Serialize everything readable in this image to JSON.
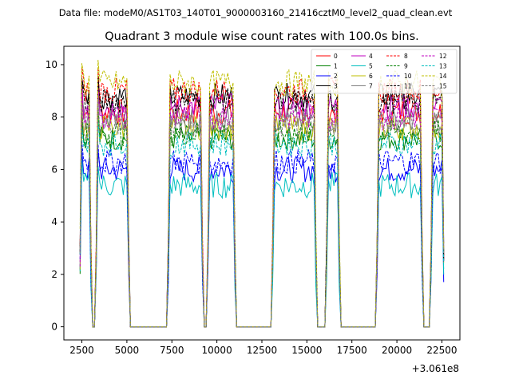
{
  "chart_data": {
    "type": "line",
    "suptitle": "Data file: modeM0/AS1T03_140T01_9000003160_21416cztM0_level2_quad_clean.evt",
    "title": "Quadrant 3 module wise count rates with 100.0s bins.",
    "xlabel": "",
    "ylabel": "",
    "x_offset_label": "+3.061e8",
    "xlim": [
      1500,
      23500
    ],
    "ylim": [
      -0.5,
      10.7
    ],
    "x_ticks": [
      2500,
      5000,
      7500,
      10000,
      12500,
      15000,
      17500,
      20000,
      22500
    ],
    "x_tick_labels": [
      "2500",
      "5000",
      "7500",
      "10000",
      "12500",
      "15000",
      "17500",
      "20000",
      "22500"
    ],
    "y_ticks": [
      0,
      2,
      4,
      6,
      8,
      10
    ],
    "y_tick_labels": [
      "0",
      "2",
      "4",
      "6",
      "8",
      "10"
    ],
    "segments": [
      {
        "start": 2400,
        "end": 3000
      },
      {
        "start": 3300,
        "end": 5100
      },
      {
        "start": 7300,
        "end": 9200
      },
      {
        "start": 9500,
        "end": 11000
      },
      {
        "start": 13100,
        "end": 15500
      },
      {
        "start": 16100,
        "end": 16800
      },
      {
        "start": 18900,
        "end": 21400
      },
      {
        "start": 21900,
        "end": 22600
      }
    ],
    "legend": {
      "location": "upper right",
      "ncol": 4
    },
    "series": [
      {
        "name": "0",
        "color": "#ff0000",
        "dash": "solid",
        "level": 8.2
      },
      {
        "name": "1",
        "color": "#008000",
        "dash": "solid",
        "level": 7.2
      },
      {
        "name": "2",
        "color": "#0000ff",
        "dash": "solid",
        "level": 6.0
      },
      {
        "name": "3",
        "color": "#000000",
        "dash": "solid",
        "level": 8.8
      },
      {
        "name": "4",
        "color": "#c000c0",
        "dash": "solid",
        "level": 8.4
      },
      {
        "name": "5",
        "color": "#00bfbf",
        "dash": "solid",
        "level": 5.4
      },
      {
        "name": "6",
        "color": "#bfbf00",
        "dash": "solid",
        "level": 7.6
      },
      {
        "name": "7",
        "color": "#808080",
        "dash": "solid",
        "level": 7.9
      },
      {
        "name": "8",
        "color": "#ff0000",
        "dash": "dashed",
        "level": 9.0
      },
      {
        "name": "9",
        "color": "#008000",
        "dash": "dashed",
        "level": 7.4
      },
      {
        "name": "10",
        "color": "#0000ff",
        "dash": "dashed",
        "level": 6.3
      },
      {
        "name": "11",
        "color": "#000000",
        "dash": "dashed",
        "level": 8.6
      },
      {
        "name": "12",
        "color": "#c000c0",
        "dash": "dashed",
        "level": 8.0
      },
      {
        "name": "13",
        "color": "#00bfbf",
        "dash": "dashed",
        "level": 7.0
      },
      {
        "name": "14",
        "color": "#bfbf00",
        "dash": "dashed",
        "level": 9.3
      },
      {
        "name": "15",
        "color": "#808080",
        "dash": "dashed",
        "level": 7.7
      }
    ]
  }
}
